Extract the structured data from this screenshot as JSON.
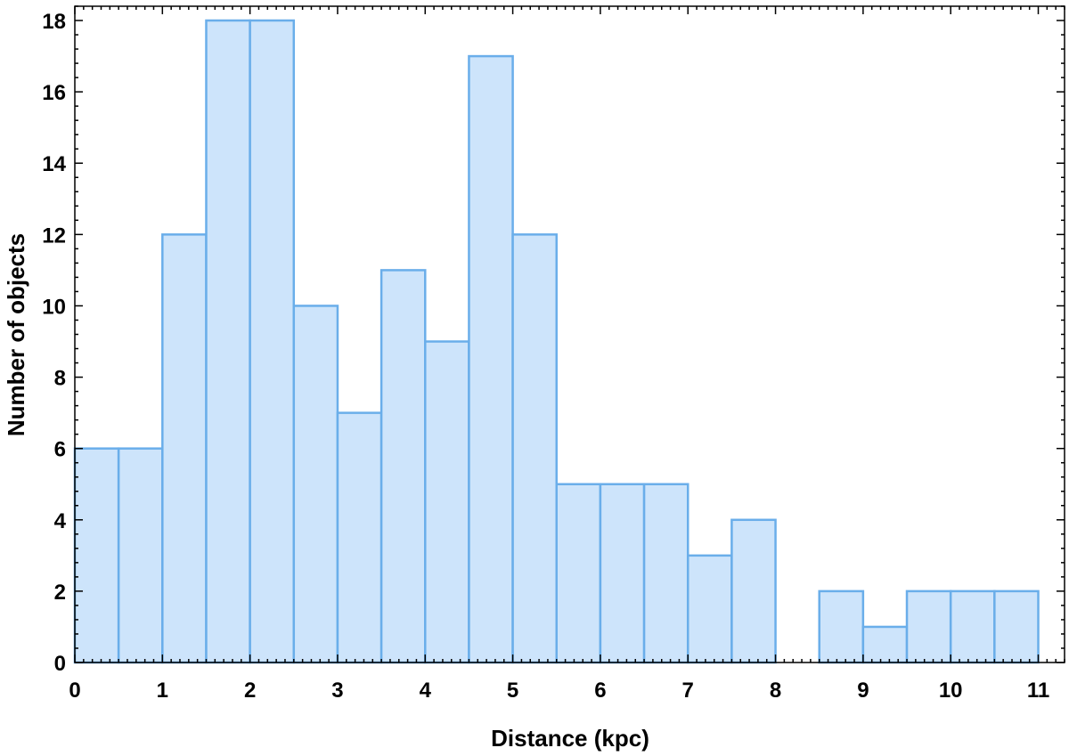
{
  "chart_data": {
    "type": "bar",
    "histogram": true,
    "bin_width": 0.5,
    "bin_edges": [
      0,
      0.5,
      1,
      1.5,
      2,
      2.5,
      3,
      3.5,
      4,
      4.5,
      5,
      5.5,
      6,
      6.5,
      7,
      7.5,
      8,
      8.5,
      9,
      9.5,
      10,
      10.5,
      11
    ],
    "values": [
      6,
      6,
      12,
      18,
      18,
      10,
      7,
      11,
      9,
      17,
      12,
      5,
      5,
      5,
      3,
      4,
      0,
      2,
      1,
      2,
      2,
      2
    ],
    "xlabel": "Distance (kpc)",
    "ylabel": "Number of objects",
    "xlim": [
      0,
      11.3
    ],
    "ylim": [
      0,
      18.4
    ],
    "xticks": [
      "0",
      "1",
      "2",
      "3",
      "4",
      "5",
      "6",
      "7",
      "8",
      "9",
      "10",
      "11"
    ],
    "yticks": [
      "0",
      "2",
      "4",
      "6",
      "8",
      "10",
      "12",
      "14",
      "16",
      "18"
    ],
    "grid": false,
    "legend": "none",
    "bar_fill_color": "#cde4fb",
    "bar_edge_color": "#6aaeea"
  }
}
